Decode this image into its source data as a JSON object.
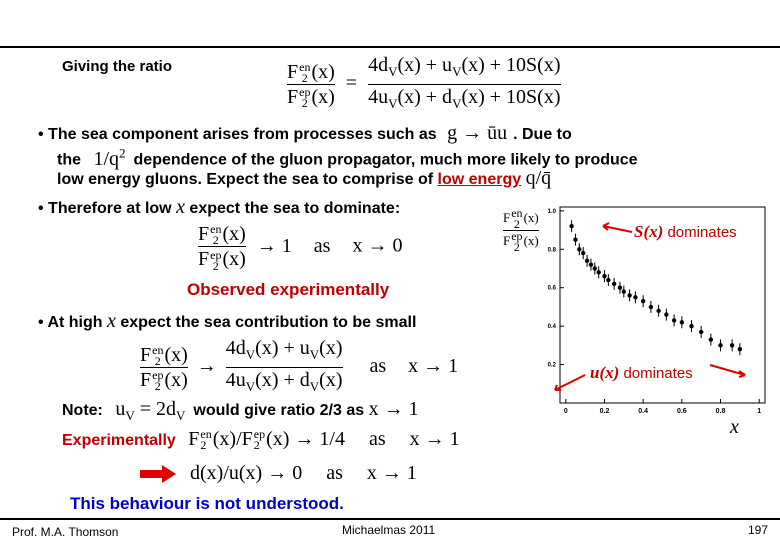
{
  "F_en": {
    "base": "F",
    "sub": "2",
    "sup": "en",
    "arg": "(x)"
  },
  "F_ep": {
    "base": "F",
    "sub": "2",
    "sup": "ep",
    "arg": "(x)"
  },
  "intro": {
    "label": "Giving the ratio",
    "eq": "=",
    "num": [
      "4d",
      "V",
      "(x) + u",
      "V",
      "(x) + 10S(x)"
    ],
    "den": [
      "4u",
      "V",
      "(x) + d",
      "V",
      "(x) + 10S(x)"
    ]
  },
  "bullet1": {
    "pre": "• The sea component arises from processes such as",
    "math": "g → ūu",
    "post": ". Due to",
    "l2pre": "the",
    "l2math": "1/q",
    "l2sup": "2",
    "l2post": "dependence of the gluon propagator, much more likely to produce",
    "l3pre": "low energy gluons.  Expect the sea to comprise of",
    "l3u": "low energy",
    "l3math": "q/q̄"
  },
  "bullet2": {
    "pre": "• Therefore at low",
    "x": "x",
    "post": "expect the sea to dominate:"
  },
  "sea_eq": {
    "tail": "→ 1",
    "as": "as",
    "lim": "x → 0"
  },
  "observed": "Observed experimentally",
  "bullet3": {
    "pre": "• At high",
    "x": "x",
    "post": "expect the sea contribution to be small"
  },
  "high_eq": {
    "arrow": "→",
    "num": [
      "4d",
      "V",
      "(x) + u",
      "V",
      "(x)"
    ],
    "den": [
      "4u",
      "V",
      "(x) + d",
      "V",
      "(x)"
    ],
    "as": "as",
    "lim": "x → 1"
  },
  "note": {
    "label": "Note:",
    "eq": [
      "u",
      "V",
      " = 2d",
      "V"
    ],
    "text": "would give ratio 2/3 as",
    "lim": "x → 1"
  },
  "exp": {
    "label": "Experimentally",
    "slash": "/",
    "tail": "→ 1/4",
    "as": "as",
    "lim": "x → 1"
  },
  "du": {
    "eq": "d(x)/u(x) → 0",
    "as": "as",
    "lim": "x → 1"
  },
  "conclusion": "This behaviour is not understood.",
  "plot": {
    "xlim": [
      -0.03,
      1.03
    ],
    "ylim": [
      0,
      1.02
    ],
    "xticks": [
      0,
      0.2,
      0.4,
      0.6,
      0.8,
      1
    ],
    "yticks": [
      0.2,
      0.4,
      0.6,
      0.8,
      {
        "value": 1,
        "label": "1.0"
      }
    ],
    "points": {
      "x": [
        0.03,
        0.05,
        0.07,
        0.09,
        0.11,
        0.13,
        0.15,
        0.17,
        0.2,
        0.22,
        0.25,
        0.28,
        0.3,
        0.33,
        0.36,
        0.4,
        0.44,
        0.48,
        0.52,
        0.56,
        0.6,
        0.65,
        0.7,
        0.75,
        0.8,
        0.86,
        0.9
      ],
      "y": [
        0.92,
        0.85,
        0.8,
        0.78,
        0.74,
        0.72,
        0.7,
        0.68,
        0.66,
        0.64,
        0.62,
        0.6,
        0.58,
        0.56,
        0.55,
        0.53,
        0.5,
        0.48,
        0.46,
        0.43,
        0.42,
        0.4,
        0.37,
        0.33,
        0.3,
        0.3,
        0.28
      ]
    },
    "s_label": {
      "fn": "S(x)",
      "text": "dominates"
    },
    "u_label": {
      "fn": "u(x)",
      "text": "dominates"
    },
    "x_label": "x"
  },
  "footer": {
    "author": "Prof. M.A. Thomson",
    "term": "Michaelmas 2011",
    "page": "197"
  }
}
